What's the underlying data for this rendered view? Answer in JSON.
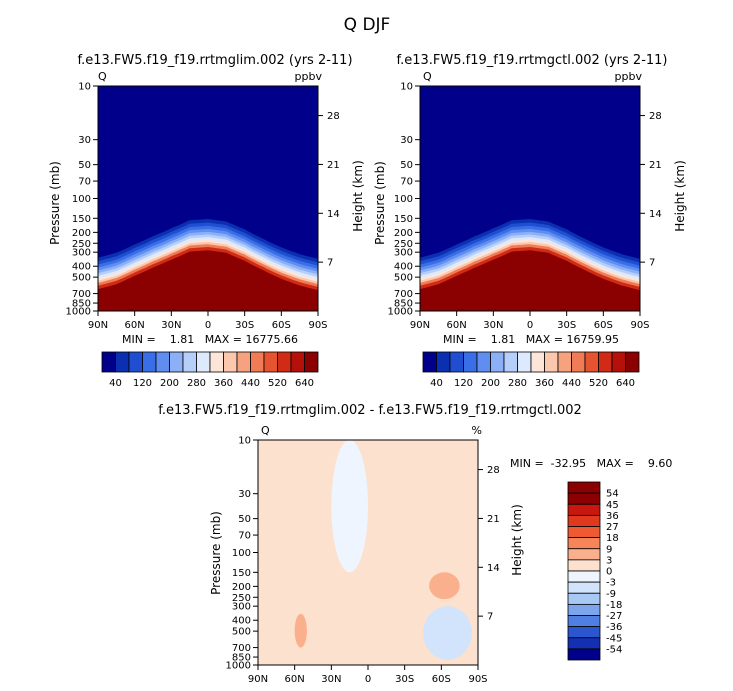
{
  "figure": {
    "title": "Q DJF"
  },
  "colors": {
    "positive_scale": [
      "#00008b",
      "#0a2fb0",
      "#1f4fd0",
      "#3a6ee6",
      "#5f8ef0",
      "#8cb0f5",
      "#b6cefa",
      "#dde9fd",
      "#fde6d8",
      "#fbc7ad",
      "#f7a27f",
      "#f07b55",
      "#e5532f",
      "#d22b15",
      "#b5100a",
      "#8b0000"
    ],
    "diff_scale": [
      "#8b0000",
      "#c8170e",
      "#e0391d",
      "#f05a32",
      "#f7855a",
      "#fbb08d",
      "#fde1cf",
      "#eef5fe",
      "#d1e4fb",
      "#a9c9f5",
      "#7da5ee",
      "#4f7fe3",
      "#2a57d0",
      "#1230b0",
      "#00008b"
    ]
  },
  "chart_data": [
    {
      "type": "heatmap",
      "panel": "left",
      "title": "f.e13.FW5.f19_f19.rrtmglim.002 (yrs 2-11)",
      "left_string": "Q",
      "right_string": "ppbv",
      "xlabel": "",
      "ylabel": "Pressure (mb)",
      "right_ylabel": "Height (km)",
      "x_ticks": [
        "90N",
        "60N",
        "30N",
        "0",
        "30S",
        "60S",
        "90S"
      ],
      "y_ticks": [
        "10",
        "30",
        "50",
        "70",
        "100",
        "150",
        "200",
        "250",
        "300",
        "400",
        "500",
        "700",
        "850",
        "1000"
      ],
      "right_y_ticks": [
        "28",
        "21",
        "14",
        "7"
      ],
      "stats": "MIN =    1.81   MAX = 16775.66",
      "colorbar_labels": [
        "40",
        "120",
        "200",
        "280",
        "360",
        "440",
        "520",
        "640"
      ],
      "tropopause_mb_by_lat": {
        "lat": [
          90,
          75,
          60,
          45,
          30,
          15,
          0,
          -15,
          -30,
          -45,
          -60,
          -75,
          -90
        ],
        "p_mb": [
          420,
          380,
          320,
          270,
          230,
          195,
          190,
          200,
          235,
          285,
          340,
          390,
          430
        ]
      }
    },
    {
      "type": "heatmap",
      "panel": "right",
      "title": "f.e13.FW5.f19_f19.rrtmgctl.002 (yrs 2-11)",
      "left_string": "Q",
      "right_string": "ppbv",
      "xlabel": "",
      "ylabel": "Pressure (mb)",
      "right_ylabel": "Height (km)",
      "x_ticks": [
        "90N",
        "60N",
        "30N",
        "0",
        "30S",
        "60S",
        "90S"
      ],
      "y_ticks": [
        "10",
        "30",
        "50",
        "70",
        "100",
        "150",
        "200",
        "250",
        "300",
        "400",
        "500",
        "700",
        "850",
        "1000"
      ],
      "right_y_ticks": [
        "28",
        "21",
        "14",
        "7"
      ],
      "stats": "MIN =    1.81   MAX = 16759.95",
      "colorbar_labels": [
        "40",
        "120",
        "200",
        "280",
        "360",
        "440",
        "520",
        "640"
      ],
      "tropopause_mb_by_lat": {
        "lat": [
          90,
          75,
          60,
          45,
          30,
          15,
          0,
          -15,
          -30,
          -45,
          -60,
          -75,
          -90
        ],
        "p_mb": [
          420,
          380,
          320,
          270,
          230,
          195,
          190,
          200,
          235,
          285,
          340,
          390,
          430
        ]
      }
    },
    {
      "type": "heatmap",
      "panel": "bottom",
      "title": "f.e13.FW5.f19_f19.rrtmglim.002 - f.e13.FW5.f19_f19.rrtmgctl.002",
      "left_string": "Q",
      "right_string": "%",
      "xlabel": "",
      "ylabel": "Pressure (mb)",
      "right_ylabel": "Height (km)",
      "x_ticks": [
        "90N",
        "60N",
        "30N",
        "0",
        "30S",
        "60S",
        "90S"
      ],
      "y_ticks": [
        "10",
        "30",
        "50",
        "70",
        "100",
        "150",
        "200",
        "250",
        "300",
        "400",
        "500",
        "700",
        "850",
        "1000"
      ],
      "right_y_ticks": [
        "28",
        "21",
        "14",
        "7"
      ],
      "stats": "MIN =  -32.95   MAX =    9.60",
      "colorbar_labels": [
        "54",
        "45",
        "36",
        "27",
        "18",
        "9",
        "3",
        "0",
        "-3",
        "-9",
        "-18",
        "-27",
        "-36",
        "-45",
        "-54"
      ],
      "background_category": "0 to 3",
      "negative_regions": [
        {
          "lat": [
            30,
            0
          ],
          "p_mb": [
            10,
            150
          ],
          "category": "-3 to 0"
        },
        {
          "lat": [
            -45,
            -85
          ],
          "p_mb": [
            300,
            900
          ],
          "category": "-3 to -9"
        }
      ],
      "positive_regions": [
        {
          "lat": [
            -50,
            -75
          ],
          "p_mb": [
            150,
            260
          ],
          "category": "3 to 9"
        },
        {
          "lat": [
            60,
            50
          ],
          "p_mb": [
            350,
            700
          ],
          "category": "3 to 9"
        }
      ]
    }
  ]
}
